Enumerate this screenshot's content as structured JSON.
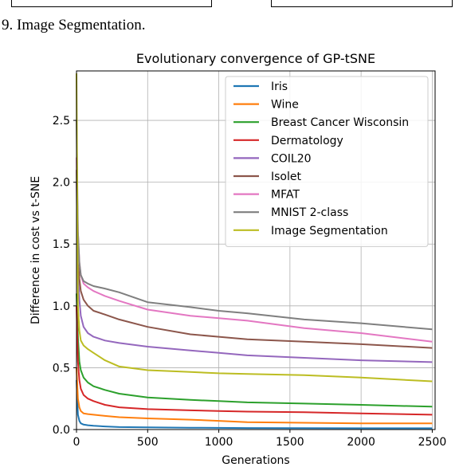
{
  "caption": "9.  Image Segmentation.",
  "chart_data": {
    "type": "line",
    "title": "Evolutionary convergence of GP-tSNE",
    "xlabel": "Generations",
    "ylabel": "Difference in cost vs t-SNE",
    "xlim": [
      0,
      2520
    ],
    "ylim": [
      0,
      2.9
    ],
    "xticks": [
      0,
      500,
      1000,
      1500,
      2000,
      2500
    ],
    "yticks": [
      0.0,
      0.5,
      1.0,
      1.5,
      2.0,
      2.5
    ],
    "grid": true,
    "legend_position": "top-right",
    "series": [
      {
        "name": "Iris",
        "color": "#1f77b4",
        "x": [
          0,
          10,
          20,
          30,
          50,
          80,
          120,
          200,
          300,
          500,
          800,
          1200,
          1600,
          2000,
          2500
        ],
        "y": [
          0.4,
          0.12,
          0.07,
          0.05,
          0.04,
          0.035,
          0.03,
          0.025,
          0.02,
          0.018,
          0.015,
          0.012,
          0.011,
          0.01,
          0.01
        ]
      },
      {
        "name": "Wine",
        "color": "#ff7f0e",
        "x": [
          0,
          10,
          20,
          30,
          50,
          80,
          120,
          200,
          300,
          500,
          800,
          1000,
          1200,
          1600,
          2000,
          2500
        ],
        "y": [
          0.5,
          0.25,
          0.18,
          0.15,
          0.13,
          0.125,
          0.12,
          0.11,
          0.1,
          0.09,
          0.08,
          0.07,
          0.06,
          0.055,
          0.05,
          0.05
        ]
      },
      {
        "name": "Breast Cancer Wisconsin",
        "color": "#2ca02c",
        "x": [
          0,
          10,
          20,
          30,
          50,
          80,
          120,
          200,
          300,
          500,
          800,
          1000,
          1200,
          1600,
          2000,
          2500
        ],
        "y": [
          1.1,
          0.75,
          0.55,
          0.48,
          0.42,
          0.38,
          0.35,
          0.32,
          0.29,
          0.26,
          0.24,
          0.23,
          0.22,
          0.21,
          0.2,
          0.185
        ]
      },
      {
        "name": "Dermatology",
        "color": "#d62728",
        "x": [
          0,
          10,
          20,
          30,
          50,
          80,
          120,
          200,
          300,
          500,
          800,
          1000,
          1200,
          1600,
          2000,
          2500
        ],
        "y": [
          1.0,
          0.55,
          0.4,
          0.33,
          0.28,
          0.25,
          0.23,
          0.2,
          0.18,
          0.165,
          0.155,
          0.15,
          0.145,
          0.14,
          0.13,
          0.12
        ]
      },
      {
        "name": "COIL20",
        "color": "#9467bd",
        "x": [
          0,
          10,
          20,
          30,
          50,
          80,
          120,
          200,
          300,
          500,
          800,
          1000,
          1200,
          1600,
          2000,
          2500
        ],
        "y": [
          2.0,
          1.3,
          1.05,
          0.92,
          0.83,
          0.78,
          0.75,
          0.72,
          0.7,
          0.67,
          0.64,
          0.62,
          0.6,
          0.58,
          0.56,
          0.545
        ]
      },
      {
        "name": "Isolet",
        "color": "#8c564b",
        "x": [
          0,
          10,
          20,
          30,
          50,
          80,
          120,
          200,
          300,
          500,
          800,
          1000,
          1200,
          1600,
          2000,
          2500
        ],
        "y": [
          2.1,
          1.45,
          1.22,
          1.12,
          1.05,
          1.0,
          0.96,
          0.93,
          0.89,
          0.83,
          0.77,
          0.75,
          0.73,
          0.71,
          0.69,
          0.66
        ]
      },
      {
        "name": "MFAT",
        "color": "#e377c2",
        "x": [
          0,
          10,
          20,
          30,
          50,
          80,
          120,
          200,
          300,
          500,
          800,
          1000,
          1200,
          1600,
          2000,
          2500
        ],
        "y": [
          2.2,
          1.6,
          1.35,
          1.25,
          1.18,
          1.15,
          1.12,
          1.08,
          1.04,
          0.97,
          0.92,
          0.9,
          0.88,
          0.82,
          0.78,
          0.71
        ]
      },
      {
        "name": "MNIST 2-class",
        "color": "#7f7f7f",
        "x": [
          0,
          10,
          20,
          30,
          50,
          80,
          120,
          200,
          300,
          500,
          800,
          1000,
          1200,
          1600,
          2000,
          2500
        ],
        "y": [
          2.5,
          1.6,
          1.35,
          1.25,
          1.2,
          1.18,
          1.16,
          1.14,
          1.11,
          1.03,
          0.99,
          0.96,
          0.94,
          0.89,
          0.86,
          0.81
        ]
      },
      {
        "name": "Image Segmentation",
        "color": "#bcbd22",
        "x": [
          0,
          10,
          20,
          30,
          50,
          80,
          120,
          200,
          300,
          500,
          800,
          1000,
          1200,
          1600,
          2000,
          2500
        ],
        "y": [
          2.88,
          1.0,
          0.8,
          0.72,
          0.68,
          0.65,
          0.62,
          0.56,
          0.51,
          0.48,
          0.465,
          0.455,
          0.45,
          0.44,
          0.42,
          0.39
        ]
      }
    ]
  }
}
